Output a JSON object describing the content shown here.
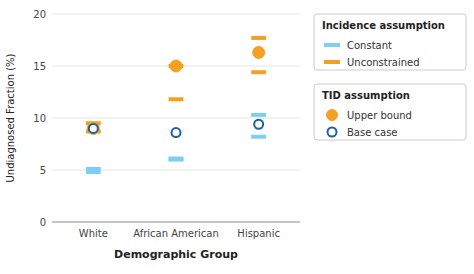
{
  "chart_data": {
    "type": "dot",
    "xlabel": "Demographic Group",
    "ylabel": "Undiagnosed Fraction (%)",
    "categories": [
      "White",
      "African American",
      "Hispanic"
    ],
    "ylim": [
      0,
      20
    ],
    "yticks": [
      0,
      5,
      10,
      15,
      20
    ],
    "grid": true,
    "legend": "right",
    "series": [
      {
        "name": "Constant",
        "group": "Incidence assumption",
        "type": "range",
        "color": "#7ecef4",
        "low": [
          4.8,
          6.0,
          8.2
        ],
        "high": [
          5.1,
          6.1,
          10.3
        ]
      },
      {
        "name": "Unconstrained",
        "group": "Incidence assumption",
        "type": "range",
        "color": "#f5a023",
        "low": [
          8.7,
          11.8,
          14.4
        ],
        "high": [
          9.5,
          15.0,
          17.7
        ]
      },
      {
        "name": "Upper bound",
        "group": "TID assumption",
        "type": "dot",
        "color": "#f5a023",
        "marker": "circle",
        "values": [
          9.0,
          15.0,
          16.3
        ]
      },
      {
        "name": "Base case",
        "group": "TID assumption",
        "type": "dot",
        "color": "#1f5fa6",
        "marker": "open-circle",
        "values": [
          9.0,
          8.6,
          9.4
        ]
      }
    ]
  }
}
